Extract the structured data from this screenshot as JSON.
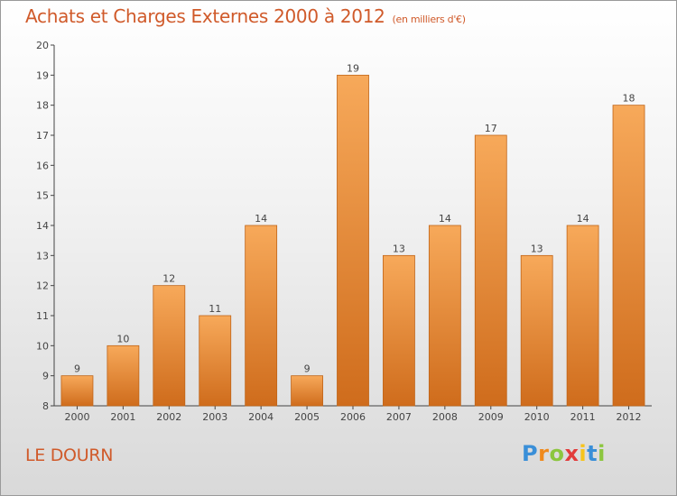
{
  "header": {
    "title": "Achats et Charges Externes 2000 à 2012",
    "subtitle": "(en milliers d'€)"
  },
  "footer": {
    "place": "LE DOURN",
    "logo_letters": [
      "P",
      "r",
      "o",
      "x",
      "i",
      "t",
      "i"
    ],
    "logo_colors": [
      "#3a8fd8",
      "#f08a1c",
      "#8cc63f",
      "#e23b3b",
      "#f7c41b",
      "#3a8fd8",
      "#8cc63f"
    ]
  },
  "colors": {
    "bar_top": "#f7a95a",
    "bar_bottom": "#cf6c1c",
    "bar_stroke": "#c06417",
    "axis": "#444444",
    "text": "#444444"
  },
  "chart_data": {
    "type": "bar",
    "title": "Achats et Charges Externes 2000 à 2012",
    "subtitle": "(en milliers d'€)",
    "categories": [
      "2000",
      "2001",
      "2002",
      "2003",
      "2004",
      "2005",
      "2006",
      "2007",
      "2008",
      "2009",
      "2010",
      "2011",
      "2012"
    ],
    "values": [
      9,
      10,
      12,
      11,
      14,
      9,
      19,
      13,
      14,
      17,
      13,
      14,
      18
    ],
    "data_labels": [
      "9",
      "10",
      "12",
      "11",
      "14",
      "9",
      "19",
      "13",
      "14",
      "17",
      "13",
      "14",
      "18"
    ],
    "yticks": [
      8,
      9,
      10,
      11,
      12,
      13,
      14,
      15,
      16,
      17,
      18,
      19,
      20
    ],
    "ylim": [
      8,
      20
    ],
    "xlabel": "",
    "ylabel": "",
    "grid": false,
    "legend": "none"
  }
}
